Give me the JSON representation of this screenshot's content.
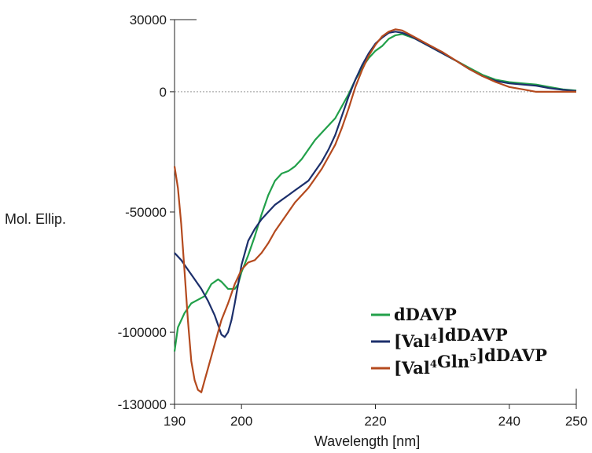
{
  "chart_data": {
    "type": "line",
    "title": "",
    "xlabel": "Wavelength [nm]",
    "ylabel": "Mol. Ellip.",
    "xlim": [
      190,
      250
    ],
    "ylim": [
      -130000,
      30000
    ],
    "x_ticks": [
      190,
      200,
      220,
      240,
      250
    ],
    "y_ticks": [
      30000,
      0,
      -50000,
      -100000,
      -130000
    ],
    "x_tick_labels": [
      "190",
      "200",
      "220",
      "240",
      "250"
    ],
    "y_tick_labels": [
      "30000",
      "0",
      "-50000",
      "-100000",
      "-130000"
    ],
    "zero_reference_line": true,
    "grid": false,
    "legend_position": "bottom-right",
    "series": [
      {
        "name": "dDAVP",
        "legend": {
          "base": "dDAVP",
          "parts": []
        },
        "color": "#22a04a",
        "points": [
          [
            190,
            -108000
          ],
          [
            190.5,
            -98000
          ],
          [
            191.5,
            -92000
          ],
          [
            192.5,
            -88000
          ],
          [
            193.5,
            -86500
          ],
          [
            194.5,
            -85000
          ],
          [
            195.5,
            -80000
          ],
          [
            196.5,
            -78000
          ],
          [
            197,
            -79000
          ],
          [
            198,
            -82000
          ],
          [
            199,
            -82000
          ],
          [
            199.5,
            -80000
          ],
          [
            200,
            -75000
          ],
          [
            201,
            -68000
          ],
          [
            202,
            -60000
          ],
          [
            203,
            -51000
          ],
          [
            204,
            -43000
          ],
          [
            205,
            -37000
          ],
          [
            206,
            -34000
          ],
          [
            207,
            -33000
          ],
          [
            208,
            -31000
          ],
          [
            209,
            -28000
          ],
          [
            210,
            -24000
          ],
          [
            211,
            -20000
          ],
          [
            212,
            -17000
          ],
          [
            213,
            -14000
          ],
          [
            214,
            -11000
          ],
          [
            215,
            -6000
          ],
          [
            216,
            -1000
          ],
          [
            217,
            5000
          ],
          [
            218,
            10000
          ],
          [
            219,
            14000
          ],
          [
            220,
            17000
          ],
          [
            221,
            19000
          ],
          [
            222,
            22000
          ],
          [
            223,
            23500
          ],
          [
            224,
            24000
          ],
          [
            225,
            23000
          ],
          [
            226,
            22000
          ],
          [
            228,
            19000
          ],
          [
            230,
            16000
          ],
          [
            232,
            13000
          ],
          [
            234,
            10000
          ],
          [
            236,
            7000
          ],
          [
            238,
            5000
          ],
          [
            240,
            4000
          ],
          [
            242,
            3500
          ],
          [
            244,
            3000
          ],
          [
            246,
            2000
          ],
          [
            248,
            1000
          ],
          [
            250,
            500
          ]
        ]
      },
      {
        "name": "[Val4]dDAVP",
        "legend": {
          "base": "dDAVP",
          "parts": [
            {
              "text": "[Val"
            },
            {
              "text": "4",
              "sup": true
            },
            {
              "text": "]"
            }
          ]
        },
        "color": "#1c2f6b",
        "points": [
          [
            190,
            -67000
          ],
          [
            191,
            -70000
          ],
          [
            192,
            -74000
          ],
          [
            193,
            -78000
          ],
          [
            194,
            -82000
          ],
          [
            195,
            -87000
          ],
          [
            196,
            -93000
          ],
          [
            196.5,
            -97000
          ],
          [
            197,
            -101000
          ],
          [
            197.5,
            -102000
          ],
          [
            198,
            -100000
          ],
          [
            198.5,
            -95000
          ],
          [
            199,
            -88000
          ],
          [
            200,
            -72000
          ],
          [
            201,
            -62000
          ],
          [
            202,
            -57000
          ],
          [
            203,
            -53000
          ],
          [
            204,
            -50000
          ],
          [
            205,
            -47000
          ],
          [
            206,
            -45000
          ],
          [
            207,
            -43000
          ],
          [
            208,
            -41000
          ],
          [
            209,
            -39000
          ],
          [
            210,
            -37000
          ],
          [
            211,
            -33000
          ],
          [
            212,
            -29000
          ],
          [
            213,
            -24000
          ],
          [
            214,
            -18000
          ],
          [
            215,
            -10000
          ],
          [
            216,
            -2000
          ],
          [
            217,
            5000
          ],
          [
            218,
            11000
          ],
          [
            219,
            16000
          ],
          [
            220,
            20000
          ],
          [
            221,
            22500
          ],
          [
            222,
            24500
          ],
          [
            223,
            25000
          ],
          [
            224,
            24500
          ],
          [
            225,
            23500
          ],
          [
            226,
            22000
          ],
          [
            228,
            19000
          ],
          [
            230,
            16000
          ],
          [
            232,
            13000
          ],
          [
            234,
            9500
          ],
          [
            236,
            6500
          ],
          [
            238,
            4500
          ],
          [
            240,
            3500
          ],
          [
            242,
            3000
          ],
          [
            244,
            2500
          ],
          [
            246,
            1500
          ],
          [
            248,
            800
          ],
          [
            250,
            300
          ]
        ]
      },
      {
        "name": "[Val4Gln5]dDAVP",
        "legend": {
          "base": "dDAVP",
          "parts": [
            {
              "text": "[Val"
            },
            {
              "text": "4",
              "sup": true
            },
            {
              "text": "Gln"
            },
            {
              "text": "5",
              "sup": true
            },
            {
              "text": "]"
            }
          ]
        },
        "color": "#b44a1e",
        "points": [
          [
            190,
            -31000
          ],
          [
            190.5,
            -40000
          ],
          [
            191,
            -55000
          ],
          [
            191.5,
            -75000
          ],
          [
            192,
            -95000
          ],
          [
            192.5,
            -112000
          ],
          [
            193,
            -120000
          ],
          [
            193.5,
            -124000
          ],
          [
            194,
            -125000
          ],
          [
            194.5,
            -120000
          ],
          [
            195,
            -115000
          ],
          [
            196,
            -105000
          ],
          [
            197,
            -95000
          ],
          [
            198,
            -88000
          ],
          [
            199,
            -80000
          ],
          [
            200,
            -74000
          ],
          [
            201,
            -71000
          ],
          [
            202,
            -70000
          ],
          [
            203,
            -67000
          ],
          [
            204,
            -63000
          ],
          [
            205,
            -58000
          ],
          [
            206,
            -54000
          ],
          [
            207,
            -50000
          ],
          [
            208,
            -46000
          ],
          [
            209,
            -43000
          ],
          [
            210,
            -40000
          ],
          [
            211,
            -36000
          ],
          [
            212,
            -32000
          ],
          [
            213,
            -27000
          ],
          [
            214,
            -22000
          ],
          [
            215,
            -15000
          ],
          [
            216,
            -7000
          ],
          [
            217,
            2000
          ],
          [
            218,
            9000
          ],
          [
            219,
            15000
          ],
          [
            220,
            19500
          ],
          [
            221,
            23000
          ],
          [
            222,
            25000
          ],
          [
            223,
            26000
          ],
          [
            224,
            25500
          ],
          [
            225,
            24000
          ],
          [
            226,
            22500
          ],
          [
            228,
            19500
          ],
          [
            230,
            16500
          ],
          [
            232,
            13000
          ],
          [
            234,
            9500
          ],
          [
            236,
            6500
          ],
          [
            238,
            4000
          ],
          [
            240,
            2000
          ],
          [
            242,
            1000
          ],
          [
            244,
            0
          ],
          [
            246,
            0
          ],
          [
            248,
            0
          ],
          [
            250,
            0
          ]
        ]
      }
    ]
  }
}
